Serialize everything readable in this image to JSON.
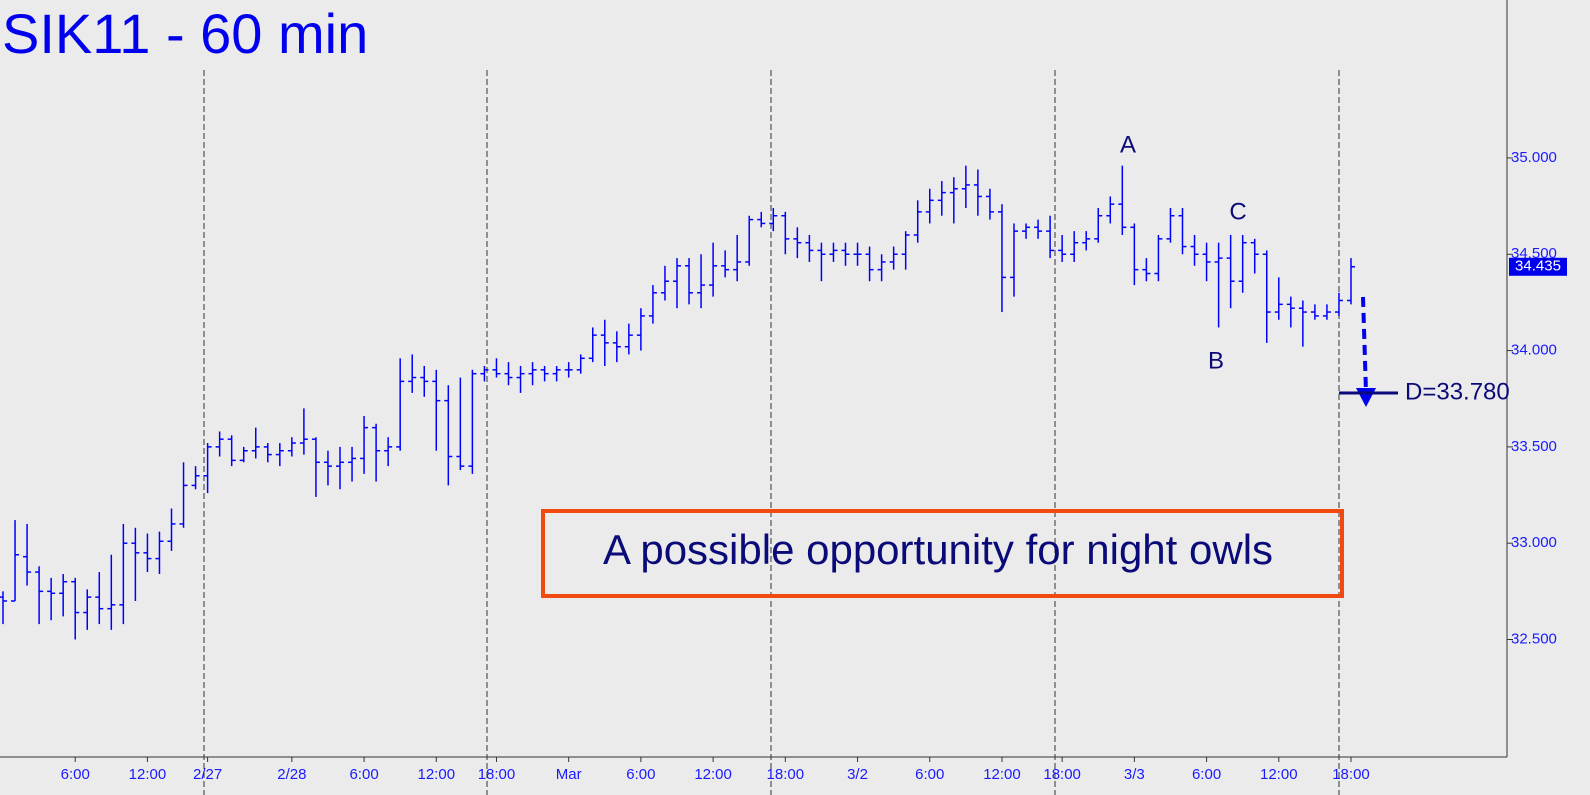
{
  "chart_data": {
    "type": "ohlc",
    "title": "SIK11 - 60 min",
    "color": "#0000ff",
    "categories": [
      null,
      null,
      null,
      null,
      null,
      null,
      "6:00",
      null,
      null,
      null,
      null,
      null,
      "12:00",
      null,
      null,
      null,
      null,
      "2/27",
      null,
      null,
      null,
      null,
      null,
      null,
      "2/28",
      null,
      null,
      null,
      null,
      null,
      "6:00",
      null,
      null,
      null,
      null,
      null,
      "12:00",
      null,
      null,
      null,
      null,
      "18:00",
      null,
      null,
      null,
      null,
      null,
      "Mar",
      null,
      null,
      null,
      null,
      null,
      "6:00",
      null,
      null,
      null,
      null,
      null,
      "12:00",
      null,
      null,
      null,
      null,
      null,
      "18:00",
      null,
      null,
      null,
      null,
      null,
      "3/2",
      null,
      null,
      null,
      null,
      null,
      "6:00",
      null,
      null,
      null,
      null,
      null,
      "12:00",
      null,
      null,
      null,
      null,
      "18:00",
      null,
      null,
      null,
      null,
      null,
      "3/3",
      null,
      null,
      null,
      null,
      null,
      "6:00",
      null,
      null,
      null,
      null,
      null,
      "12:00",
      null,
      null,
      null,
      null,
      null,
      "18:00"
    ],
    "open": [
      32.72,
      32.7,
      32.93,
      32.85,
      32.75,
      32.74,
      32.8,
      32.64,
      32.72,
      32.66,
      32.68,
      33.0,
      32.95,
      32.92,
      33.01,
      33.1,
      33.3,
      33.35,
      33.5,
      33.54,
      33.43,
      33.48,
      33.5,
      33.46,
      33.48,
      33.52,
      33.54,
      33.42,
      33.4,
      33.42,
      33.44,
      33.6,
      33.48,
      33.5,
      33.84,
      33.86,
      33.84,
      33.74,
      33.45,
      33.4,
      33.88,
      33.9,
      33.88,
      33.86,
      33.88,
      33.9,
      33.88,
      33.9,
      33.9,
      33.96,
      34.08,
      34.04,
      34.02,
      34.08,
      34.18,
      34.3,
      34.36,
      34.44,
      34.3,
      34.34,
      34.44,
      34.42,
      34.46,
      34.68,
      34.66,
      34.7,
      34.58,
      34.56,
      34.52,
      34.5,
      34.52,
      34.5,
      34.5,
      34.42,
      34.46,
      34.5,
      34.6,
      34.72,
      34.78,
      34.82,
      34.84,
      34.86,
      34.8,
      34.72,
      34.38,
      34.62,
      34.64,
      34.62,
      34.52,
      34.5,
      34.56,
      34.58,
      34.7,
      34.76,
      34.64,
      34.42,
      34.4,
      34.58,
      34.7,
      34.54,
      34.5,
      34.46,
      34.48,
      34.36,
      34.56,
      34.5,
      34.2,
      34.24,
      34.22,
      34.2,
      34.18,
      34.2,
      34.26
    ],
    "high": [
      32.75,
      33.12,
      33.1,
      32.88,
      32.82,
      32.84,
      32.82,
      32.76,
      32.85,
      32.94,
      33.1,
      33.08,
      33.05,
      33.06,
      33.18,
      33.42,
      33.4,
      33.52,
      33.58,
      33.56,
      33.5,
      33.6,
      33.52,
      33.52,
      33.55,
      33.7,
      33.55,
      33.48,
      33.5,
      33.5,
      33.66,
      33.62,
      33.55,
      33.96,
      33.98,
      33.92,
      33.9,
      33.82,
      33.86,
      33.9,
      33.92,
      33.96,
      33.94,
      33.92,
      33.94,
      33.92,
      33.92,
      33.94,
      33.98,
      34.12,
      34.16,
      34.1,
      34.14,
      34.22,
      34.34,
      34.44,
      34.48,
      34.48,
      34.5,
      34.56,
      34.52,
      34.6,
      34.7,
      34.72,
      34.74,
      34.72,
      34.64,
      34.6,
      34.56,
      34.56,
      34.56,
      34.56,
      34.54,
      34.5,
      34.54,
      34.62,
      34.78,
      34.84,
      34.88,
      34.9,
      34.96,
      34.94,
      34.84,
      34.76,
      34.66,
      34.66,
      34.68,
      34.7,
      34.6,
      34.62,
      34.62,
      34.74,
      34.8,
      34.96,
      34.66,
      34.48,
      34.6,
      34.74,
      34.74,
      34.6,
      34.56,
      34.56,
      34.6,
      34.6,
      34.58,
      34.52,
      34.38,
      34.28,
      34.26,
      34.24,
      34.24,
      34.3,
      34.48
    ],
    "low": [
      32.58,
      32.7,
      32.78,
      32.58,
      32.6,
      32.62,
      32.5,
      32.55,
      32.58,
      32.55,
      32.58,
      32.7,
      32.85,
      32.84,
      32.96,
      33.08,
      33.28,
      33.26,
      33.45,
      33.4,
      33.42,
      33.44,
      33.42,
      33.4,
      33.45,
      33.46,
      33.24,
      33.3,
      33.28,
      33.32,
      33.36,
      33.32,
      33.4,
      33.48,
      33.78,
      33.76,
      33.48,
      33.3,
      33.38,
      33.36,
      33.84,
      33.86,
      33.82,
      33.78,
      33.82,
      33.84,
      33.84,
      33.86,
      33.88,
      33.94,
      33.92,
      33.94,
      33.98,
      34.0,
      34.14,
      34.26,
      34.22,
      34.24,
      34.22,
      34.28,
      34.38,
      34.36,
      34.44,
      34.64,
      34.62,
      34.5,
      34.48,
      34.46,
      34.36,
      34.46,
      34.44,
      34.44,
      34.36,
      34.36,
      34.42,
      34.42,
      34.56,
      34.66,
      34.7,
      34.66,
      34.74,
      34.7,
      34.68,
      34.2,
      34.28,
      34.58,
      34.58,
      34.48,
      34.46,
      34.46,
      34.52,
      34.56,
      34.66,
      34.6,
      34.34,
      34.36,
      34.36,
      34.56,
      34.5,
      34.44,
      34.36,
      34.12,
      34.22,
      34.3,
      34.4,
      34.04,
      34.16,
      34.12,
      34.02,
      34.16,
      34.16,
      34.18,
      34.24
    ],
    "close": [
      32.7,
      32.94,
      32.85,
      32.75,
      32.74,
      32.8,
      32.64,
      32.72,
      32.66,
      32.68,
      33.0,
      32.95,
      32.92,
      33.01,
      33.1,
      33.3,
      33.35,
      33.5,
      33.54,
      33.43,
      33.48,
      33.5,
      33.46,
      33.48,
      33.52,
      33.54,
      33.42,
      33.4,
      33.42,
      33.44,
      33.6,
      33.48,
      33.5,
      33.84,
      33.86,
      33.84,
      33.74,
      33.45,
      33.4,
      33.88,
      33.9,
      33.88,
      33.86,
      33.88,
      33.9,
      33.88,
      33.9,
      33.9,
      33.96,
      34.08,
      34.04,
      34.02,
      34.08,
      34.18,
      34.3,
      34.36,
      34.44,
      34.3,
      34.34,
      34.44,
      34.42,
      34.46,
      34.68,
      34.66,
      34.7,
      34.58,
      34.56,
      34.52,
      34.5,
      34.52,
      34.5,
      34.5,
      34.42,
      34.46,
      34.5,
      34.6,
      34.72,
      34.78,
      34.82,
      34.84,
      34.86,
      34.8,
      34.72,
      34.38,
      34.62,
      34.64,
      34.62,
      34.52,
      34.5,
      34.56,
      34.58,
      34.7,
      34.76,
      34.64,
      34.42,
      34.4,
      34.58,
      34.7,
      34.54,
      34.5,
      34.46,
      34.48,
      34.36,
      34.56,
      34.5,
      34.2,
      34.24,
      34.22,
      34.2,
      34.18,
      34.2,
      34.26,
      34.435
    ],
    "ylim": [
      31.89,
      35.82
    ],
    "yticks": [
      {
        "value": 32.5,
        "label": "32.500"
      },
      {
        "value": 33,
        "label": "33.000"
      },
      {
        "value": 33.5,
        "label": "33.500"
      },
      {
        "value": 34,
        "label": "34.000"
      },
      {
        "value": 34.5,
        "label": "34.500"
      },
      {
        "value": 35,
        "label": "35.000"
      }
    ],
    "last_price": 34.435,
    "target": {
      "value": 33.78,
      "label": "D=33.780"
    },
    "annotations": [
      "A",
      "B",
      "C"
    ],
    "callout": "A possible opportunity for night owls"
  }
}
